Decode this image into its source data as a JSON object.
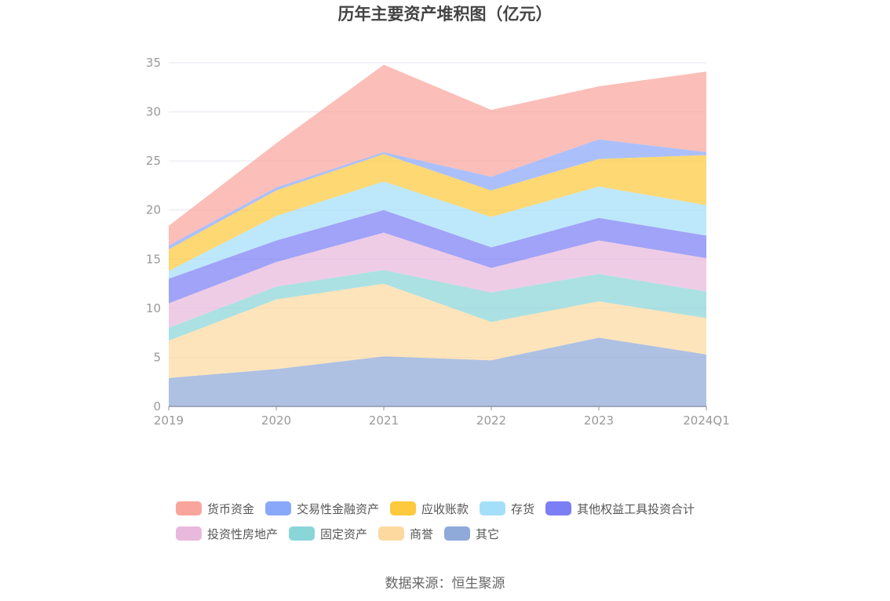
{
  "chart_data": {
    "type": "area",
    "stacked": true,
    "title": "历年主要资产堆积图（亿元）",
    "source": "数据来源：恒生聚源",
    "x": [
      "2019",
      "2020",
      "2021",
      "2022",
      "2023",
      "2024Q1"
    ],
    "ylim": [
      0,
      35
    ],
    "yticks": [
      0,
      5,
      10,
      15,
      20,
      25,
      30,
      35
    ],
    "grid": true,
    "legend_position": "bottom",
    "series": [
      {
        "name": "其它",
        "color": "#8fa9d8",
        "values": [
          2.9,
          3.8,
          5.1,
          4.7,
          7.0,
          5.3
        ]
      },
      {
        "name": "商誉",
        "color": "#fdd9a0",
        "values": [
          3.8,
          7.1,
          7.4,
          3.9,
          3.7,
          3.7
        ]
      },
      {
        "name": "固定资产",
        "color": "#8ad5d8",
        "values": [
          1.3,
          1.3,
          1.4,
          3.0,
          2.8,
          2.7
        ]
      },
      {
        "name": "投资性房地产",
        "color": "#e8b9dc",
        "values": [
          2.5,
          2.5,
          3.8,
          2.5,
          3.4,
          3.4
        ]
      },
      {
        "name": "其他权益工具投资合计",
        "color": "#7c7ff4",
        "values": [
          2.5,
          2.2,
          2.3,
          2.1,
          2.3,
          2.3
        ]
      },
      {
        "name": "存货",
        "color": "#a4dff9",
        "values": [
          0.8,
          2.5,
          2.9,
          3.1,
          3.2,
          3.1
        ]
      },
      {
        "name": "应收账款",
        "color": "#fdc93d",
        "values": [
          2.2,
          2.6,
          2.8,
          2.7,
          2.8,
          5.1
        ]
      },
      {
        "name": "交易性金融资产",
        "color": "#8aa8fa",
        "values": [
          0.4,
          0.3,
          0.2,
          1.4,
          2.0,
          0.3
        ]
      },
      {
        "name": "货币资金",
        "color": "#f9a59c",
        "values": [
          2.0,
          4.5,
          8.9,
          6.8,
          5.4,
          8.2
        ]
      }
    ],
    "legend_order": [
      "货币资金",
      "交易性金融资产",
      "应收账款",
      "存货",
      "其他权益工具投资合计",
      "投资性房地产",
      "固定资产",
      "商誉",
      "其它"
    ]
  }
}
